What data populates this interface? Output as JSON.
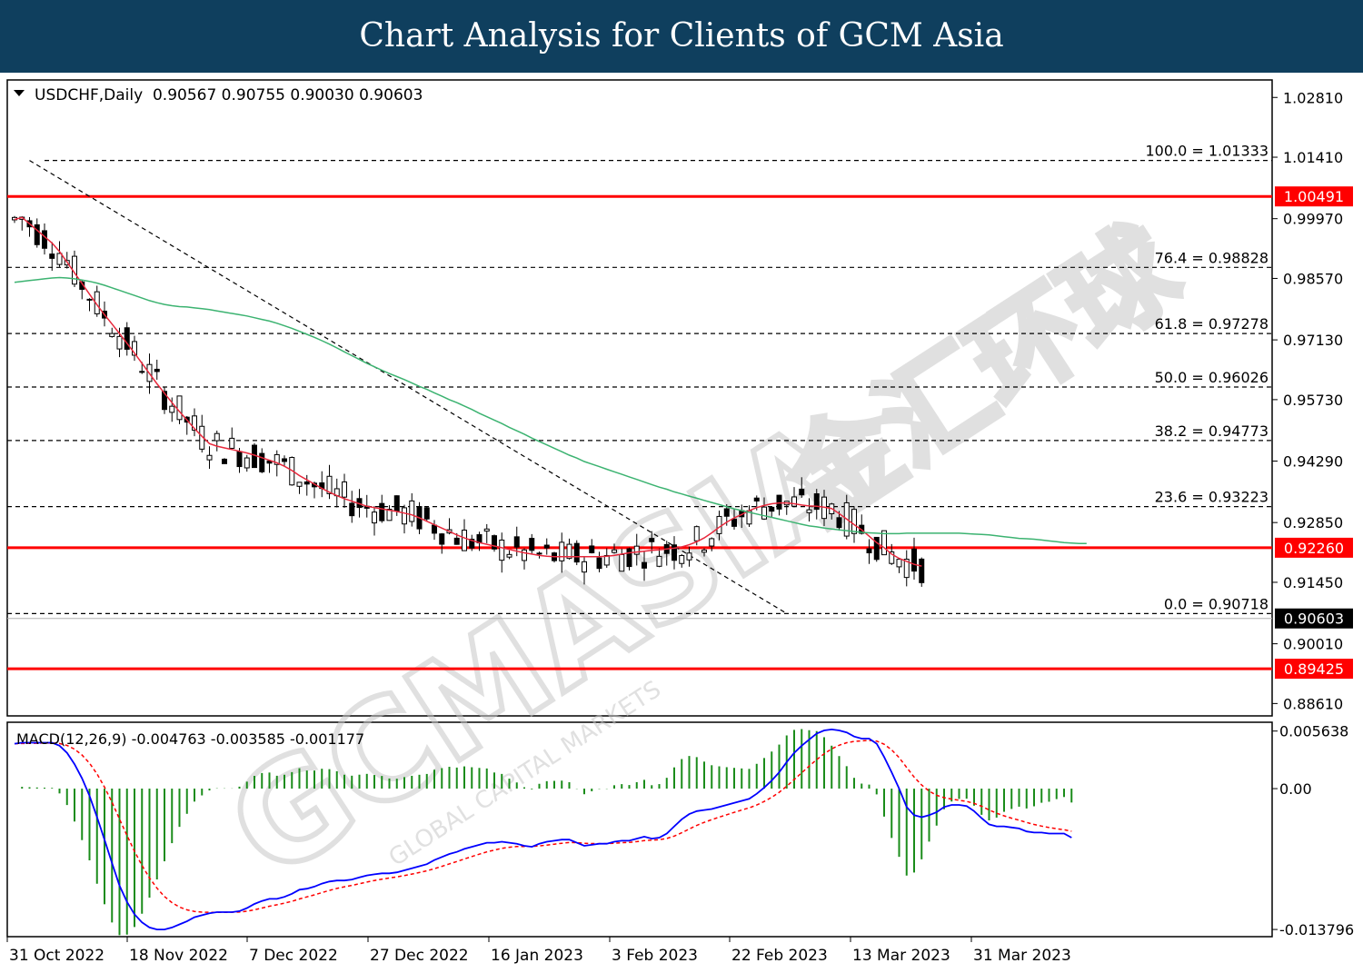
{
  "banner": {
    "title": "Chart Analysis for Clients of GCM Asia"
  },
  "chart_data": {
    "type": "candlestick",
    "symbol_info": "USDCHF,Daily  0.90567 0.90755 0.90030 0.90603",
    "x_labels": [
      "31 Oct 2022",
      "18 Nov 2022",
      "7 Dec 2022",
      "27 Dec 2022",
      "16 Jan 2023",
      "3 Feb 2023",
      "22 Feb 2023",
      "13 Mar 2023",
      "31 Mar 2023"
    ],
    "price_axis": {
      "ticks": [
        "1.02810",
        "1.01410",
        "0.99970",
        "0.98570",
        "0.97130",
        "0.95730",
        "0.94290",
        "0.92850",
        "0.91450",
        "0.90010",
        "0.88610"
      ],
      "range": [
        0.8832,
        1.0322
      ]
    },
    "fibonacci": [
      {
        "label": "100.0 = 1.01333",
        "value": 1.01333
      },
      {
        "label": "76.4 = 0.98828",
        "value": 0.98828
      },
      {
        "label": "61.8 = 0.97278",
        "value": 0.97278
      },
      {
        "label": "50.0 = 0.96026",
        "value": 0.96026
      },
      {
        "label": "38.2 = 0.94773",
        "value": 0.94773
      },
      {
        "label": "23.6 = 0.93223",
        "value": 0.93223
      },
      {
        "label": "0.0 = 0.90718",
        "value": 0.90718
      }
    ],
    "horizontal_levels": [
      {
        "label": "1.00491",
        "value": 1.00491,
        "color": "#ff0000"
      },
      {
        "label": "0.92260",
        "value": 0.9226,
        "color": "#ff0000"
      },
      {
        "label": "0.89425",
        "value": 0.89425,
        "color": "#ff0000"
      }
    ],
    "current_price": {
      "label": "0.90603",
      "value": 0.90603
    },
    "trendline": {
      "from": [
        2,
        1.01333
      ],
      "to": [
        103,
        0.9072
      ]
    },
    "series": [
      {
        "name": "MA fast",
        "color": "#e8283c",
        "values": [
          0.9995,
          1.0,
          0.9985,
          0.997,
          0.9955,
          0.994,
          0.992,
          0.9895,
          0.987,
          0.9845,
          0.982,
          0.9795,
          0.9772,
          0.975,
          0.9728,
          0.9705,
          0.9682,
          0.9658,
          0.9634,
          0.961,
          0.9588,
          0.9566,
          0.9545,
          0.9525,
          0.9505,
          0.9487,
          0.947,
          0.9464,
          0.946,
          0.9456,
          0.9452,
          0.9448,
          0.9443,
          0.9437,
          0.9431,
          0.9425,
          0.9417,
          0.9407,
          0.9395,
          0.9385,
          0.9375,
          0.9365,
          0.9356,
          0.9348,
          0.9341,
          0.9335,
          0.9329,
          0.9323,
          0.932,
          0.9317,
          0.9314,
          0.9311,
          0.9307,
          0.9303,
          0.9296,
          0.9288,
          0.928,
          0.9272,
          0.9264,
          0.9256,
          0.9249,
          0.9243,
          0.9238,
          0.9234,
          0.923,
          0.9226,
          0.9222,
          0.9218,
          0.9214,
          0.9211,
          0.9208,
          0.9206,
          0.9205,
          0.9205,
          0.9205,
          0.9205,
          0.9205,
          0.9205,
          0.9205,
          0.9206,
          0.9208,
          0.9211,
          0.9214,
          0.9216,
          0.9218,
          0.922,
          0.9221,
          0.9223,
          0.9225,
          0.9228,
          0.9233,
          0.924,
          0.9249,
          0.9261,
          0.9274,
          0.9286,
          0.9296,
          0.9304,
          0.9313,
          0.932,
          0.9325,
          0.9329,
          0.9331,
          0.9331,
          0.9329,
          0.9326,
          0.9324,
          0.9323,
          0.9321,
          0.9318,
          0.9306,
          0.9293,
          0.928,
          0.9268,
          0.9253,
          0.9238,
          0.9226,
          0.9211,
          0.9201,
          0.9194,
          0.9187,
          0.9183
        ]
      },
      {
        "name": "MA slow",
        "color": "#3cb371",
        "values": [
          0.9848,
          0.985,
          0.9852,
          0.9854,
          0.9856,
          0.9858,
          0.9859,
          0.9858,
          0.9856,
          0.9853,
          0.985,
          0.9846,
          0.9841,
          0.9835,
          0.9829,
          0.9823,
          0.9817,
          0.9811,
          0.9805,
          0.98,
          0.9796,
          0.9793,
          0.9791,
          0.979,
          0.9788,
          0.9786,
          0.9784,
          0.9781,
          0.9778,
          0.9775,
          0.9772,
          0.9769,
          0.9765,
          0.9761,
          0.9757,
          0.9752,
          0.9746,
          0.974,
          0.9733,
          0.9726,
          0.9719,
          0.9711,
          0.9703,
          0.9694,
          0.9685,
          0.9676,
          0.9667,
          0.9658,
          0.965,
          0.9642,
          0.9634,
          0.9627,
          0.962,
          0.9612,
          0.9604,
          0.9597,
          0.9589,
          0.9581,
          0.9573,
          0.9566,
          0.9558,
          0.955,
          0.9541,
          0.9533,
          0.9525,
          0.9517,
          0.9508,
          0.95,
          0.9492,
          0.9483,
          0.9475,
          0.9467,
          0.9459,
          0.9451,
          0.9443,
          0.9436,
          0.9428,
          0.9422,
          0.9416,
          0.941,
          0.9404,
          0.9398,
          0.9392,
          0.9386,
          0.938,
          0.9374,
          0.9368,
          0.9363,
          0.9357,
          0.9352,
          0.9347,
          0.9342,
          0.9337,
          0.9332,
          0.9327,
          0.9322,
          0.9317,
          0.9313,
          0.9309,
          0.9305,
          0.9301,
          0.9297,
          0.9293,
          0.9289,
          0.9285,
          0.9281,
          0.9277,
          0.9275,
          0.9272,
          0.927,
          0.9268,
          0.9266,
          0.9264,
          0.9262,
          0.9261,
          0.926,
          0.9259,
          0.9259,
          0.9259,
          0.926,
          0.926,
          0.926,
          0.926,
          0.926,
          0.926,
          0.926,
          0.926,
          0.9259,
          0.9258,
          0.9257,
          0.9256,
          0.9254,
          0.9252,
          0.925,
          0.9248,
          0.9247,
          0.9246,
          0.9244,
          0.9242,
          0.924,
          0.9238,
          0.9237,
          0.9236,
          0.9236
        ]
      }
    ],
    "macd": {
      "label": "MACD(12,26,9) -0.004763 -0.003585 -0.001177",
      "ticks": [
        "0.005638",
        "0.00",
        "-0.013796"
      ],
      "range": [
        -0.0145,
        0.0065
      ],
      "macd_color": "#0000ff",
      "signal_color": "#ff0000",
      "hist_color": "#1a8c1a",
      "macd_values": [
        0.0044,
        0.0045,
        0.0045,
        0.0045,
        0.0045,
        0.0045,
        0.0042,
        0.0035,
        0.0024,
        0.001,
        -0.0007,
        -0.0028,
        -0.005,
        -0.0073,
        -0.0095,
        -0.0111,
        -0.0123,
        -0.0131,
        -0.0136,
        -0.0138,
        -0.0138,
        -0.0136,
        -0.0133,
        -0.013,
        -0.0126,
        -0.0124,
        -0.0122,
        -0.0121,
        -0.0121,
        -0.0121,
        -0.012,
        -0.0117,
        -0.0113,
        -0.011,
        -0.0108,
        -0.0108,
        -0.0106,
        -0.0103,
        -0.0099,
        -0.0098,
        -0.0096,
        -0.0093,
        -0.0091,
        -0.009,
        -0.009,
        -0.0089,
        -0.0087,
        -0.0085,
        -0.0084,
        -0.0083,
        -0.0083,
        -0.0082,
        -0.008,
        -0.0078,
        -0.0076,
        -0.0074,
        -0.007,
        -0.0067,
        -0.0064,
        -0.0062,
        -0.0059,
        -0.0057,
        -0.0055,
        -0.0053,
        -0.0053,
        -0.0052,
        -0.0053,
        -0.0054,
        -0.0056,
        -0.0057,
        -0.0054,
        -0.0052,
        -0.0051,
        -0.005,
        -0.005,
        -0.0053,
        -0.0056,
        -0.0055,
        -0.0054,
        -0.0054,
        -0.0052,
        -0.0051,
        -0.0051,
        -0.0049,
        -0.0047,
        -0.0049,
        -0.0048,
        -0.0044,
        -0.0037,
        -0.003,
        -0.0025,
        -0.0022,
        -0.0021,
        -0.002,
        -0.0018,
        -0.0016,
        -0.0014,
        -0.0012,
        -0.001,
        -0.0005,
        0.0001,
        0.0008,
        0.0016,
        0.0026,
        0.0035,
        0.0042,
        0.0048,
        0.0054,
        0.0057,
        0.0058,
        0.0057,
        0.0055,
        0.0051,
        0.0049,
        0.0049,
        0.0044,
        0.0031,
        0.0016,
        0.0,
        -0.0018,
        -0.0026,
        -0.0028,
        -0.0026,
        -0.0023,
        -0.0018,
        -0.0016,
        -0.0016,
        -0.0017,
        -0.0022,
        -0.0029,
        -0.0035,
        -0.0037,
        -0.0037,
        -0.0038,
        -0.0039,
        -0.0042,
        -0.0043,
        -0.0043,
        -0.0044,
        -0.0044,
        -0.0044,
        -0.0048
      ]
    }
  },
  "watermark": {
    "text": "GCMASIA",
    "subtext": "GLOBAL CAPITAL MARKETS",
    "cn_text": "金汇环球"
  }
}
